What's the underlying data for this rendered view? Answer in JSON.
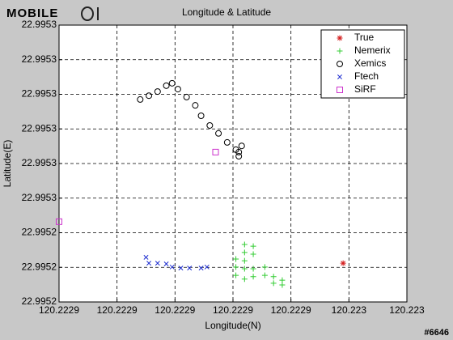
{
  "logo": "MOBILE",
  "watermark": "#6646",
  "chart_data": {
    "type": "scatter",
    "title": "Longitude & Latitude",
    "x_label": "Longitude(N)",
    "y_label": "Latitude(E)",
    "xlim": [
      120.22286,
      120.22298
    ],
    "ylim": [
      22.99522,
      22.9953
    ],
    "xticks": [
      {
        "value": 120.22286,
        "label": "120.2229"
      },
      {
        "value": 120.22288,
        "label": "120.2229"
      },
      {
        "value": 120.2229,
        "label": "120.2229"
      },
      {
        "value": 120.22292,
        "label": "120.2229"
      },
      {
        "value": 120.22294,
        "label": "120.2229"
      },
      {
        "value": 120.22296,
        "label": "120.223"
      },
      {
        "value": 120.22298,
        "label": "120.223"
      }
    ],
    "yticks": [
      {
        "value": 22.99522,
        "label": "22.9952"
      },
      {
        "value": 22.99523,
        "label": "22.9952"
      },
      {
        "value": 22.99524,
        "label": "22.9952"
      },
      {
        "value": 22.99525,
        "label": "22.9953"
      },
      {
        "value": 22.99526,
        "label": "22.9953"
      },
      {
        "value": 22.99527,
        "label": "22.9953"
      },
      {
        "value": 22.99528,
        "label": "22.9953"
      },
      {
        "value": 22.99529,
        "label": "22.9953"
      },
      {
        "value": 22.9953,
        "label": "22.9953"
      }
    ],
    "grid": true,
    "legend": "upper right",
    "series": [
      {
        "name": "True",
        "color": "#d42020",
        "marker": "*",
        "x": [
          120.222958
        ],
        "y": [
          22.9952312
        ]
      },
      {
        "name": "Nemerix",
        "color": "#33cc33",
        "marker": "+",
        "x": [
          120.222924,
          120.222924,
          120.222924,
          120.222927,
          120.222927,
          120.222921,
          120.222921,
          120.222924,
          120.222927,
          120.222927,
          120.222931,
          120.222934,
          120.222934,
          120.222937,
          120.222937,
          120.222924,
          120.222931,
          120.222921
        ],
        "y": [
          22.9952366,
          22.9952343,
          22.9952319,
          22.9952361,
          22.9952338,
          22.9952301,
          22.9952277,
          22.9952296,
          22.9952296,
          22.9952273,
          22.9952277,
          22.9952273,
          22.9952254,
          22.9952263,
          22.9952249,
          22.9952266,
          22.9952301,
          22.9952324
        ]
      },
      {
        "name": "Xemics",
        "color": "#000000",
        "marker": "o",
        "x": [
          120.222888,
          120.222891,
          120.222894,
          120.222897,
          120.222899,
          120.222901,
          120.222904,
          120.222907,
          120.222909,
          120.222912,
          120.222915,
          120.222918,
          120.222921,
          120.222922,
          120.222923,
          120.222922
        ],
        "y": [
          22.9952785,
          22.9952796,
          22.9952808,
          22.9952825,
          22.9952832,
          22.9952815,
          22.9952792,
          22.9952768,
          22.9952738,
          22.995271,
          22.9952687,
          22.9952661,
          22.995264,
          22.9952621,
          22.9952651,
          22.9952633
        ]
      },
      {
        "name": "Ftech",
        "color": "#1f2fd0",
        "marker": "x",
        "x": [
          120.22289,
          120.222891,
          120.222894,
          120.222897,
          120.222899,
          120.222902,
          120.222905,
          120.222909,
          120.222911
        ],
        "y": [
          22.9952329,
          22.9952312,
          22.9952312,
          22.995231,
          22.9952301,
          22.9952298,
          22.9952298,
          22.9952298,
          22.9952301
        ]
      },
      {
        "name": "SiRF",
        "color": "#cc33cc",
        "marker": "s",
        "x": [
          120.222914,
          120.22286
        ],
        "y": [
          22.9952633,
          22.9952432
        ]
      }
    ]
  }
}
